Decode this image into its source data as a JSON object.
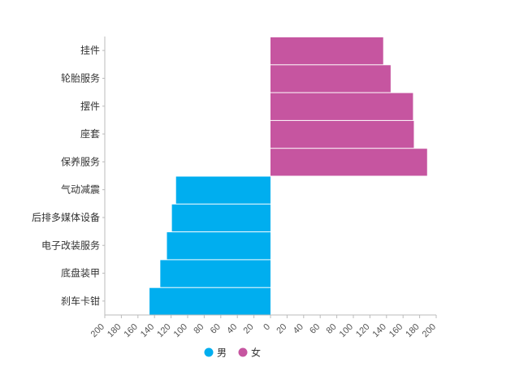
{
  "chart_data": {
    "type": "bar",
    "orientation": "horizontal-butterfly",
    "categories": [
      "挂件",
      "轮胎服务",
      "摆件",
      "座套",
      "保养服务",
      "气动减震",
      "后排多媒体设备",
      "电子改装服务",
      "底盘装甲",
      "刹车卡钳"
    ],
    "series": [
      {
        "name": "男",
        "color": "#00aeef",
        "direction": "left",
        "values": [
          0,
          0,
          0,
          0,
          0,
          114,
          119,
          125,
          133,
          146
        ]
      },
      {
        "name": "女",
        "color": "#c655a0",
        "direction": "right",
        "values": [
          136,
          145,
          172,
          173,
          189,
          0,
          0,
          0,
          0,
          0
        ]
      }
    ],
    "xlim_left": [
      0,
      200
    ],
    "xlim_right": [
      0,
      200
    ],
    "tick_values": [
      200,
      180,
      160,
      140,
      120,
      100,
      80,
      60,
      40,
      20,
      0,
      20,
      40,
      60,
      80,
      100,
      120,
      140,
      160,
      180,
      200
    ],
    "title": "",
    "xlabel": "",
    "ylabel": "",
    "grid": false,
    "legend_position": "bottom-center"
  }
}
